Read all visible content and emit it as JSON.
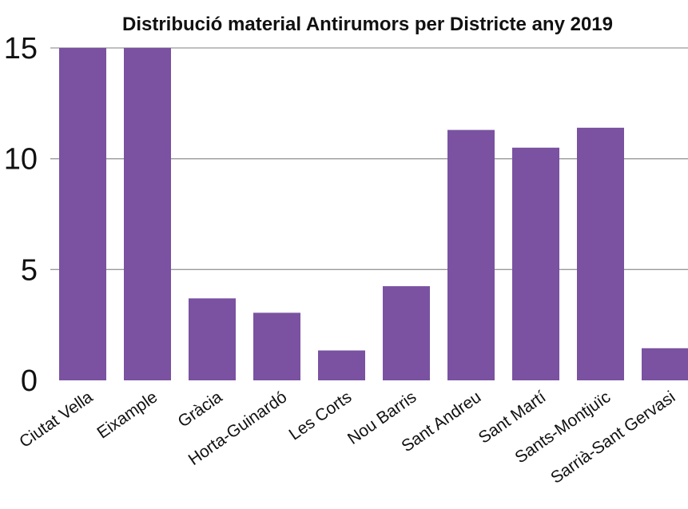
{
  "chart_data": {
    "type": "bar",
    "title": "Distribució material Antirumors per Districte any 2019",
    "xlabel": "",
    "ylabel": "",
    "categories": [
      "Ciutat Vella",
      "Eixample",
      "Gràcia",
      "Horta-Guinardó",
      "Les Corts",
      "Nou Barris",
      "Sant Andreu",
      "Sant Martí",
      "Sants-Montjuïc",
      "Sarrià-Sant Gervasi"
    ],
    "values": [
      15,
      15,
      3.7,
      3.05,
      1.35,
      4.25,
      11.3,
      10.5,
      11.4,
      1.45
    ],
    "ylim": [
      0,
      15
    ],
    "yticks": [
      0,
      5,
      10,
      15
    ],
    "grid": true,
    "legend": "none",
    "colors": {
      "bar": "#7a52a1",
      "grid": "#9a9a9a",
      "text": "#111111"
    }
  }
}
